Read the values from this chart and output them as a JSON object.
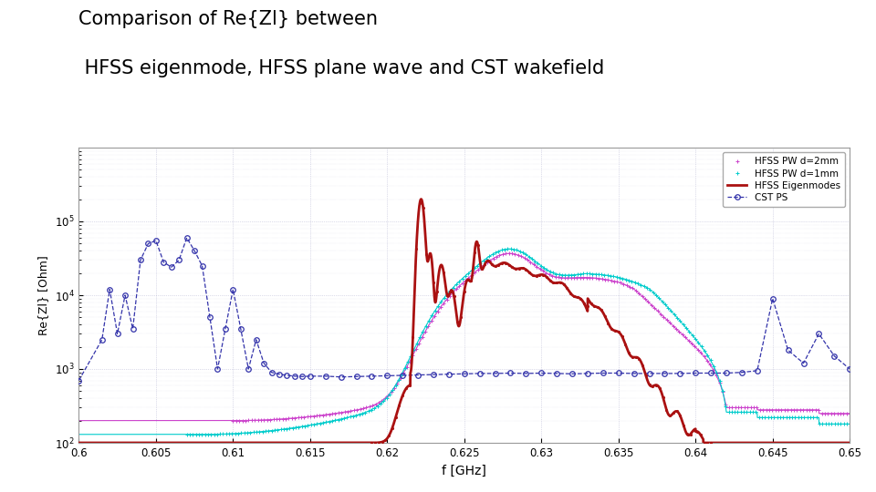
{
  "title_line1": "Comparison of Re{Zl} between",
  "title_line2": " HFSS eigenmode, HFSS plane wave and CST wakefield",
  "xlabel": "f [GHz]",
  "ylabel": "Re{Zl} [Ohm]",
  "xlim": [
    0.6,
    0.65
  ],
  "ylim": [
    100.0,
    1000000.0
  ],
  "legend": [
    "CST PS",
    "HFSS Eigenmodes",
    "HFSS PW d=2mm",
    "HFSS PW d=1mm"
  ],
  "colors": {
    "cst": "#3333aa",
    "hfss_eigen": "#aa1111",
    "hfss_pw2": "#cc44cc",
    "hfss_pw1": "#00cccc"
  },
  "background": "#ffffff",
  "grid_color": "#aaaacc"
}
